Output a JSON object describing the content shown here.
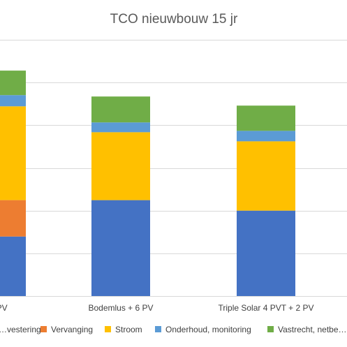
{
  "chart_data": {
    "type": "bar",
    "stacked": true,
    "title": "TCO nieuwbouw 15 jr",
    "categories": [
      "… PV",
      "Bodemlus + 6 PV",
      "Triple Solar 4 PVT + 2 PV"
    ],
    "series": [
      {
        "name": "…vestering",
        "color": "#4472C4",
        "values": [
          85,
          137,
          122
        ]
      },
      {
        "name": "Vervanging",
        "color": "#ED7D31",
        "values": [
          52,
          0,
          0
        ]
      },
      {
        "name": "Stroom",
        "color": "#FFC000",
        "values": [
          134,
          97,
          99
        ]
      },
      {
        "name": "Onderhoud, monitoring",
        "color": "#5B9BD5",
        "values": [
          16,
          14,
          15
        ]
      },
      {
        "name": "Vastrecht, netbe…",
        "color": "#70AD47",
        "values": [
          35,
          37,
          36
        ]
      }
    ],
    "ylim": [
      0,
      366
    ],
    "grid": true,
    "legend": "bottom",
    "gridline_color": "#D9D9D9"
  }
}
